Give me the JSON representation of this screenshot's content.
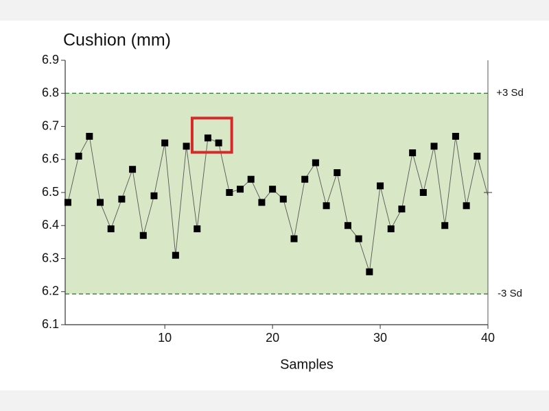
{
  "chart_data": {
    "type": "line",
    "title": "Cushion (mm)",
    "x_label": "Samples",
    "x": [
      1,
      2,
      3,
      4,
      5,
      6,
      7,
      8,
      9,
      10,
      11,
      12,
      13,
      14,
      15,
      16,
      17,
      18,
      19,
      20,
      21,
      22,
      23,
      24,
      25,
      26,
      27,
      28,
      29,
      30,
      31,
      32,
      33,
      34,
      35,
      36,
      37,
      38,
      39,
      40
    ],
    "series": [
      {
        "color": "#000000",
        "values": [
          6.47,
          6.61,
          6.67,
          6.47,
          6.39,
          6.48,
          6.57,
          6.37,
          6.49,
          6.65,
          6.31,
          6.64,
          6.39,
          6.665,
          6.65,
          6.5,
          6.51,
          6.54,
          6.47,
          6.51,
          6.48,
          6.36,
          6.54,
          6.59,
          6.46,
          6.56,
          6.4,
          6.36,
          6.26,
          6.52,
          6.39,
          6.45,
          6.62,
          6.5,
          6.64,
          6.4,
          6.67,
          6.46,
          6.61,
          6.49
        ]
      }
    ],
    "xlim": [
      0.75,
      40
    ],
    "xticks": [
      10,
      20,
      30,
      40
    ],
    "ylim": [
      6.1,
      6.9
    ],
    "yticks": [
      6.1,
      6.2,
      6.3,
      6.4,
      6.5,
      6.6,
      6.7,
      6.8,
      6.9
    ],
    "limits": [
      {
        "label": "+3 Sd",
        "value": 6.8
      },
      {
        "label": "-3 Sd",
        "value": 6.193
      }
    ],
    "mean": 6.5,
    "band_color": "#d8e7c6",
    "limit_color": "#3d8b3d",
    "highlight_color": "#d42a2a"
  }
}
